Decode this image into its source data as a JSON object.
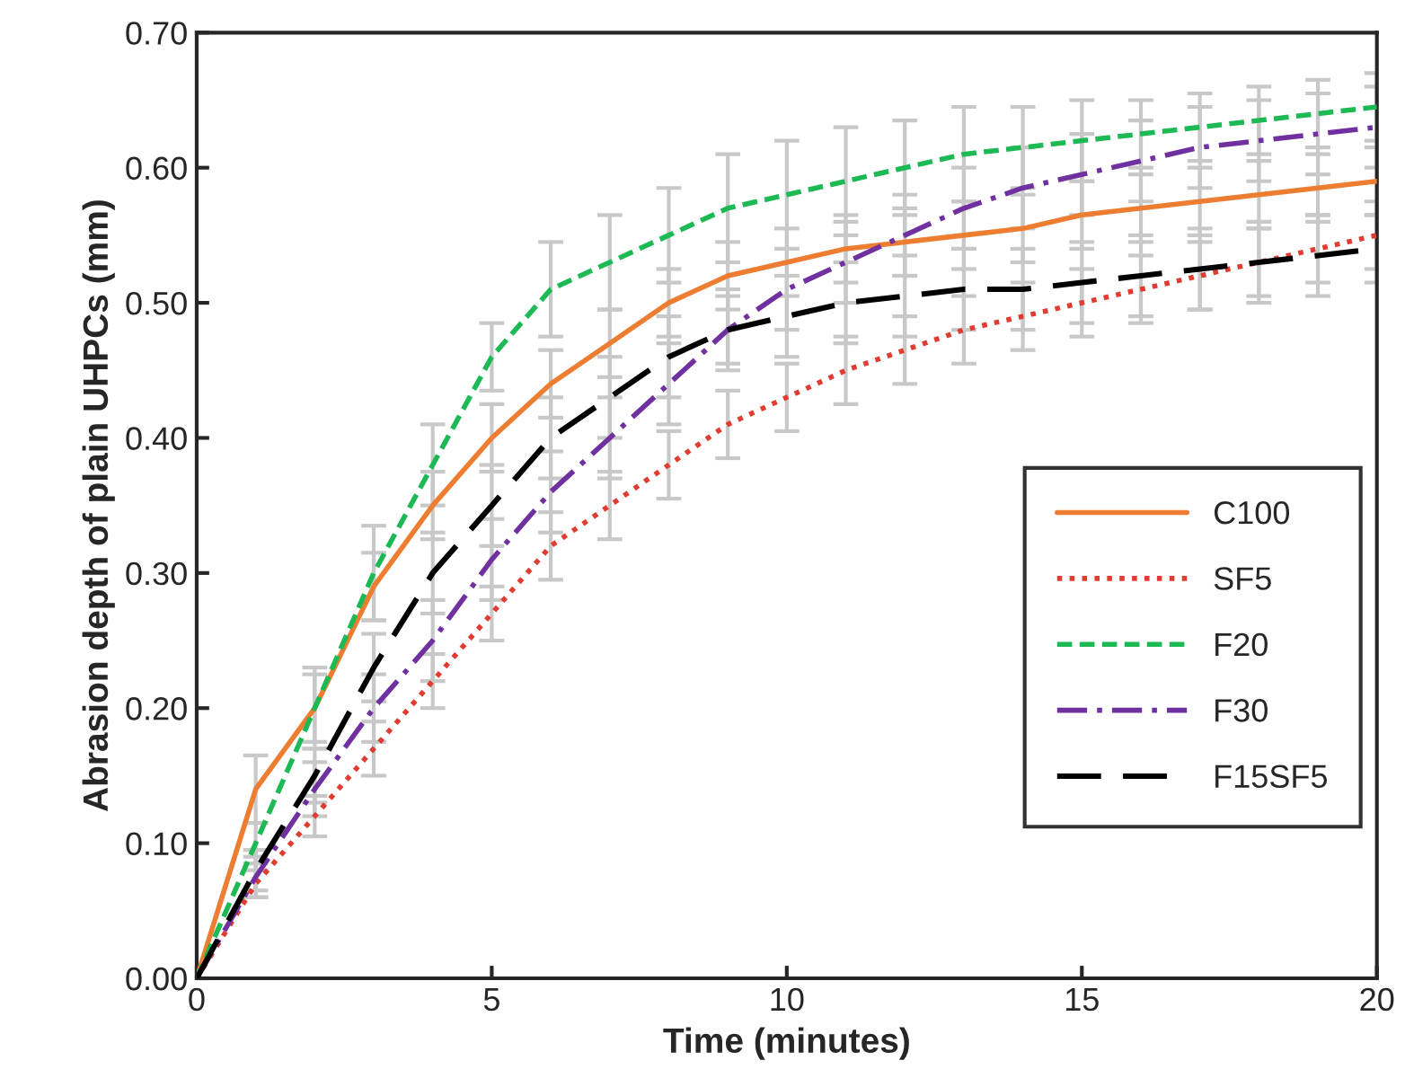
{
  "chart_data": {
    "type": "line",
    "xlabel": "Time (minutes)",
    "ylabel": "Abrasion depth of plain UHPCs (mm)",
    "x": [
      0,
      1,
      2,
      3,
      4,
      5,
      6,
      7,
      8,
      9,
      10,
      11,
      12,
      13,
      14,
      15,
      16,
      17,
      18,
      19,
      20
    ],
    "xlim": [
      0,
      20
    ],
    "xticks": [
      0,
      5,
      10,
      15,
      20
    ],
    "ylim": [
      0,
      0.7
    ],
    "yticks": [
      {
        "value": 0,
        "label": "0.00"
      },
      {
        "value": 0.1,
        "label": "0.10"
      },
      {
        "value": 0.2,
        "label": "0.20"
      },
      {
        "value": 0.3,
        "label": "0.30"
      },
      {
        "value": 0.4,
        "label": "0.40"
      },
      {
        "value": 0.5,
        "label": "0.50"
      },
      {
        "value": 0.6,
        "label": "0.60"
      },
      {
        "value": 0.7,
        "label": "0.70"
      }
    ],
    "grid": false,
    "legend": "right",
    "marker": "none",
    "series": [
      {
        "name": "C100",
        "color": "#ed7d31",
        "line_style": "solid",
        "values": [
          0,
          0.14,
          0.2,
          0.29,
          0.35,
          0.4,
          0.44,
          0.47,
          0.5,
          0.52,
          0.53,
          0.54,
          0.545,
          0.55,
          0.555,
          0.565,
          0.57,
          0.575,
          0.58,
          0.585,
          0.59
        ],
        "errors": [
          0,
          0.025,
          0.025,
          0.025,
          0.025,
          0.025,
          0.025,
          0.025,
          0.025,
          0.025,
          0.025,
          0.025,
          0.025,
          0.025,
          0.025,
          0.025,
          0.025,
          0.025,
          0.025,
          0.025,
          0.025
        ]
      },
      {
        "name": "SF5",
        "color": "#e03c31",
        "line_style": "dotted",
        "values": [
          0,
          0.07,
          0.12,
          0.17,
          0.22,
          0.27,
          0.32,
          0.35,
          0.38,
          0.41,
          0.43,
          0.45,
          0.465,
          0.48,
          0.49,
          0.5,
          0.51,
          0.52,
          0.53,
          0.54,
          0.55
        ],
        "errors": [
          0,
          0.01,
          0.015,
          0.02,
          0.02,
          0.02,
          0.025,
          0.025,
          0.025,
          0.025,
          0.025,
          0.025,
          0.025,
          0.025,
          0.025,
          0.025,
          0.025,
          0.025,
          0.025,
          0.025,
          0.025
        ]
      },
      {
        "name": "F20",
        "color": "#1db954",
        "line_style": "dashed",
        "values": [
          0,
          0.1,
          0.2,
          0.3,
          0.38,
          0.46,
          0.51,
          0.53,
          0.55,
          0.57,
          0.58,
          0.59,
          0.6,
          0.61,
          0.615,
          0.62,
          0.625,
          0.63,
          0.635,
          0.64,
          0.645
        ],
        "errors": [
          0,
          0.015,
          0.03,
          0.035,
          0.03,
          0.025,
          0.035,
          0.035,
          0.035,
          0.04,
          0.04,
          0.04,
          0.035,
          0.035,
          0.03,
          0.03,
          0.025,
          0.025,
          0.025,
          0.025,
          0.025
        ]
      },
      {
        "name": "F30",
        "color": "#7030a0",
        "line_style": "dashdot",
        "values": [
          0,
          0.075,
          0.14,
          0.2,
          0.25,
          0.31,
          0.36,
          0.4,
          0.44,
          0.48,
          0.51,
          0.53,
          0.55,
          0.57,
          0.585,
          0.595,
          0.605,
          0.615,
          0.62,
          0.625,
          0.63
        ],
        "errors": [
          0,
          0.015,
          0.02,
          0.025,
          0.03,
          0.03,
          0.03,
          0.03,
          0.03,
          0.03,
          0.03,
          0.03,
          0.03,
          0.03,
          0.03,
          0.03,
          0.03,
          0.03,
          0.03,
          0.03,
          0.03
        ]
      },
      {
        "name": "F15SF5",
        "color": "#000000",
        "line_style": "longdash",
        "values": [
          0,
          0.08,
          0.15,
          0.23,
          0.3,
          0.35,
          0.4,
          0.43,
          0.46,
          0.48,
          0.49,
          0.5,
          0.505,
          0.51,
          0.51,
          0.515,
          0.52,
          0.525,
          0.53,
          0.535,
          0.54
        ],
        "errors": [
          0,
          0.015,
          0.02,
          0.025,
          0.03,
          0.03,
          0.03,
          0.03,
          0.03,
          0.025,
          0.03,
          0.03,
          0.03,
          0.03,
          0.03,
          0.03,
          0.03,
          0.03,
          0.03,
          0.03,
          0.025
        ]
      }
    ]
  }
}
